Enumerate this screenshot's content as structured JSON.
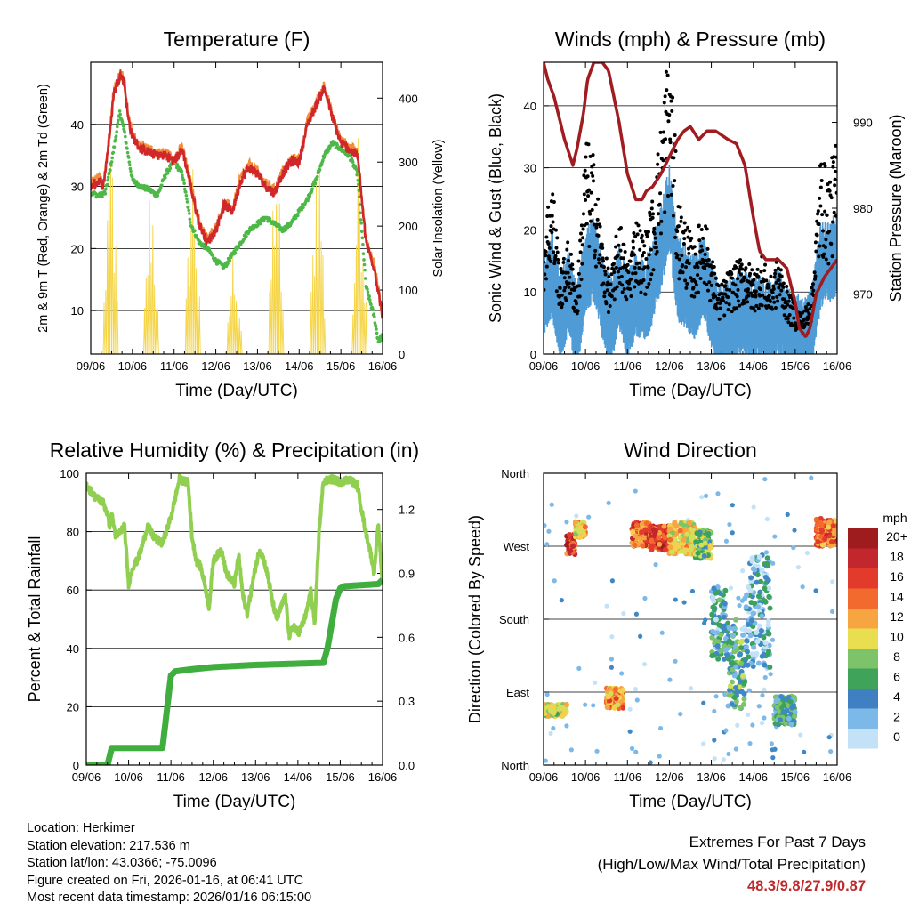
{
  "chart_data": [
    {
      "type": "line",
      "title": "Temperature (F)",
      "xlabel": "Time (Day/UTC)",
      "ylabel": "2m & 9m T (Red, Orange) & 2m Td (Green)",
      "ylabel_right": "Solar Insolation (Yellow)",
      "x_ticks": [
        "09/06",
        "10/06",
        "11/06",
        "12/06",
        "13/06",
        "14/06",
        "15/06",
        "16/06"
      ],
      "xlim": [
        0,
        7
      ],
      "ylim": [
        3,
        50
      ],
      "y_ticks": [
        10,
        20,
        30,
        40
      ],
      "ylim_right": [
        0,
        456
      ],
      "y_ticks_right": [
        0,
        100,
        200,
        300,
        400
      ],
      "colors": {
        "temp2m": "#d0282a",
        "temp9m": "#f28c3a",
        "dewpoint": "#4db848",
        "solar": "#f5d547"
      },
      "series": [
        {
          "name": "2m T",
          "x": [
            0,
            0.2,
            0.3,
            0.45,
            0.55,
            0.7,
            0.8,
            0.9,
            1.0,
            1.2,
            1.4,
            1.6,
            1.8,
            2.0,
            2.2,
            2.4,
            2.6,
            2.8,
            3.0,
            3.2,
            3.4,
            3.6,
            3.8,
            4.0,
            4.2,
            4.4,
            4.6,
            4.8,
            5.0,
            5.2,
            5.4,
            5.6,
            5.8,
            6.0,
            6.2,
            6.4,
            6.6,
            6.8,
            7.0
          ],
          "values": [
            30,
            31,
            30,
            38,
            45,
            48,
            47,
            41,
            38,
            36,
            35.5,
            35,
            35,
            34,
            36,
            30,
            24,
            21,
            23,
            27,
            26,
            31,
            33,
            32,
            30,
            29,
            32,
            34,
            34,
            40,
            43,
            46,
            41,
            37,
            36,
            35,
            21,
            17,
            9
          ]
        },
        {
          "name": "Td",
          "x": [
            0,
            0.2,
            0.35,
            0.5,
            0.6,
            0.7,
            0.8,
            0.9,
            1.0,
            1.2,
            1.4,
            1.6,
            1.8,
            2.0,
            2.2,
            2.4,
            2.6,
            2.8,
            3.0,
            3.2,
            3.4,
            3.6,
            3.8,
            4.0,
            4.2,
            4.4,
            4.6,
            4.8,
            5.0,
            5.2,
            5.4,
            5.6,
            5.8,
            6.0,
            6.2,
            6.4,
            6.6,
            6.8,
            6.9,
            7.0
          ],
          "values": [
            29,
            28.5,
            29,
            34,
            38,
            42,
            39,
            35,
            31,
            30,
            29.5,
            28.5,
            32,
            34,
            32,
            24,
            21,
            20,
            18,
            17,
            19,
            21,
            23,
            24,
            25,
            24,
            23,
            24,
            26,
            28,
            31,
            35,
            37,
            36,
            35,
            32,
            14,
            9,
            5,
            6
          ]
        },
        {
          "name": "Solar",
          "peaks": [
            {
              "x": 0.48,
              "value": 380
            },
            {
              "x": 1.45,
              "value": 300
            },
            {
              "x": 2.45,
              "value": 350
            },
            {
              "x": 3.45,
              "value": 200
            },
            {
              "x": 4.45,
              "value": 370
            },
            {
              "x": 5.45,
              "value": 400
            },
            {
              "x": 6.45,
              "value": 380
            }
          ]
        }
      ]
    },
    {
      "type": "scatter",
      "title": "Winds (mph) & Pressure (mb)",
      "xlabel": "Time (Day/UTC)",
      "ylabel": "Sonic Wind & Gust (Blue, Black)",
      "ylabel_right": "Station Pressure (Maroon)",
      "x_ticks": [
        "09/06",
        "10/06",
        "11/06",
        "12/06",
        "13/06",
        "14/06",
        "15/06",
        "16/06"
      ],
      "xlim": [
        0,
        7
      ],
      "ylim": [
        0,
        47
      ],
      "y_ticks": [
        0,
        10,
        20,
        30,
        40
      ],
      "ylim_right": [
        963,
        997
      ],
      "y_ticks_right": [
        970,
        980,
        990
      ],
      "colors": {
        "wind": "#4f9bd5",
        "gust": "#000000",
        "pressure": "#a01c20"
      },
      "series": [
        {
          "name": "Wind (mean)",
          "x": [
            0,
            0.2,
            0.4,
            0.6,
            0.8,
            1.0,
            1.2,
            1.4,
            1.6,
            1.8,
            2.0,
            2.2,
            2.4,
            2.6,
            2.8,
            3.0,
            3.2,
            3.4,
            3.6,
            3.8,
            4.0,
            4.2,
            4.4,
            4.6,
            4.8,
            5.0,
            5.2,
            5.4,
            5.6,
            5.8,
            6.0,
            6.2,
            6.4,
            6.6,
            6.8,
            7.0
          ],
          "values": [
            10,
            13,
            6,
            10,
            4,
            14,
            15,
            9,
            5,
            11,
            6,
            10,
            8,
            12,
            17,
            24,
            12,
            11,
            9,
            13,
            8,
            4,
            5,
            6,
            7,
            5,
            6,
            5,
            7,
            4,
            3,
            2,
            4,
            14,
            15,
            16
          ]
        },
        {
          "name": "Gust (mean)",
          "x": [
            0,
            0.2,
            0.4,
            0.6,
            0.8,
            1.0,
            1.2,
            1.4,
            1.6,
            1.8,
            2.0,
            2.2,
            2.4,
            2.6,
            2.8,
            3.0,
            3.2,
            3.4,
            3.6,
            3.8,
            4.0,
            4.2,
            4.4,
            4.6,
            4.8,
            5.0,
            5.2,
            5.4,
            5.6,
            5.8,
            6.0,
            6.2,
            6.4,
            6.6,
            6.8,
            7.0
          ],
          "values": [
            15,
            22,
            10,
            14,
            8,
            26,
            24,
            14,
            9,
            17,
            11,
            17,
            14,
            19,
            28,
            40,
            19,
            16,
            13,
            18,
            12,
            8,
            10,
            11,
            12,
            10,
            12,
            9,
            12,
            8,
            6,
            5,
            8,
            24,
            22,
            26
          ]
        },
        {
          "name": "Pressure",
          "x": [
            0,
            0.1,
            0.25,
            0.5,
            0.7,
            0.8,
            0.95,
            1.05,
            1.2,
            1.4,
            1.55,
            1.8,
            2.0,
            2.2,
            2.35,
            2.45,
            2.6,
            2.8,
            3.0,
            3.2,
            3.35,
            3.5,
            3.7,
            3.9,
            4.1,
            4.4,
            4.6,
            4.8,
            5.0,
            5.15,
            5.3,
            5.6,
            5.8,
            6.0,
            6.1,
            6.25,
            6.35,
            6.5,
            6.7,
            7.0
          ],
          "values": [
            997,
            995,
            993,
            988,
            985,
            987,
            991,
            995,
            997,
            997,
            996,
            990,
            984,
            981,
            981,
            982,
            982.5,
            984,
            986,
            988,
            989,
            989.5,
            988,
            989,
            989,
            988,
            987.5,
            985,
            979,
            975,
            974,
            974,
            973,
            969,
            966,
            965,
            966,
            970,
            972,
            974
          ]
        }
      ]
    },
    {
      "type": "line",
      "title": "Relative Humidity (%) & Precipitation (in)",
      "xlabel": "Time (Day/UTC)",
      "ylabel": "Percent & Total Rainfall",
      "x_ticks": [
        "09/06",
        "10/06",
        "11/06",
        "12/06",
        "13/06",
        "14/06",
        "15/06",
        "16/06"
      ],
      "xlim": [
        0,
        7
      ],
      "ylim": [
        0,
        100
      ],
      "y_ticks": [
        0,
        20,
        40,
        60,
        80,
        100
      ],
      "ylim_right": [
        0,
        1.37
      ],
      "y_ticks_right": [
        "0.0",
        "0.3",
        "0.6",
        "0.9",
        "1.2"
      ],
      "colors": {
        "rh": "#90cf4f",
        "precip": "#3fae3f"
      },
      "series": [
        {
          "name": "RH",
          "x": [
            0,
            0.2,
            0.4,
            0.5,
            0.55,
            0.6,
            0.7,
            0.8,
            0.9,
            1.0,
            1.1,
            1.2,
            1.3,
            1.45,
            1.6,
            1.8,
            2.0,
            2.2,
            2.35,
            2.4,
            2.5,
            2.6,
            2.7,
            2.8,
            2.9,
            3.0,
            3.1,
            3.2,
            3.3,
            3.5,
            3.6,
            3.7,
            3.8,
            3.9,
            4.0,
            4.1,
            4.2,
            4.3,
            4.4,
            4.5,
            4.6,
            4.7,
            4.8,
            4.9,
            5.0,
            5.1,
            5.2,
            5.3,
            5.4,
            5.5,
            5.6,
            5.8,
            6.0,
            6.2,
            6.4,
            6.5,
            6.6,
            6.7,
            6.8,
            6.9,
            7.0
          ],
          "values": [
            96,
            92,
            90,
            86,
            82,
            86,
            78,
            80,
            82,
            62,
            68,
            70,
            74,
            82,
            78,
            76,
            85,
            98,
            97,
            98,
            78,
            70,
            68,
            62,
            54,
            70,
            72,
            74,
            66,
            62,
            72,
            58,
            52,
            60,
            68,
            74,
            70,
            64,
            56,
            50,
            54,
            58,
            44,
            48,
            45,
            48,
            52,
            60,
            48,
            80,
            97,
            98,
            97,
            98,
            96,
            88,
            80,
            74,
            66,
            82,
            62
          ]
        },
        {
          "name": "Precip",
          "x": [
            0,
            0.5,
            0.6,
            1.8,
            2.0,
            2.1,
            2.5,
            3.0,
            4.0,
            5.6,
            5.7,
            5.9,
            6.0,
            6.1,
            6.9,
            7.0
          ],
          "values": [
            0,
            0,
            0.08,
            0.08,
            0.42,
            0.44,
            0.45,
            0.46,
            0.47,
            0.48,
            0.55,
            0.78,
            0.83,
            0.84,
            0.85,
            0.87
          ]
        }
      ]
    },
    {
      "type": "scatter",
      "title": "Wind Direction",
      "xlabel": "Time (Day/UTC)",
      "ylabel": "Direction (Colored By Speed)",
      "x_ticks": [
        "09/06",
        "10/06",
        "11/06",
        "12/06",
        "13/06",
        "14/06",
        "15/06",
        "16/06"
      ],
      "xlim": [
        0,
        7
      ],
      "ylim": [
        0,
        360
      ],
      "y_ticks": [
        "North",
        "East",
        "South",
        "West",
        "North"
      ],
      "legend": {
        "title": "mph",
        "labels": [
          "20+",
          "18",
          "16",
          "14",
          "12",
          "10",
          "8",
          "6",
          "4",
          "2",
          "0"
        ],
        "colors": [
          "#9e1b1e",
          "#c1272d",
          "#e23b2c",
          "#f26a2d",
          "#f7a541",
          "#f6d04d",
          "#cfe05a",
          "#7cc36a",
          "#3aa25a",
          "#3f88c5",
          "#7db9e8",
          "#c3e2f7"
        ]
      },
      "clusters": [
        {
          "x": [
            0,
            0.55
          ],
          "dir": [
            60,
            75
          ],
          "speed": 10
        },
        {
          "x": [
            0.55,
            0.75
          ],
          "dir": [
            260,
            285
          ],
          "speed": 18
        },
        {
          "x": [
            0.75,
            1.0
          ],
          "dir": [
            280,
            300
          ],
          "speed": 12
        },
        {
          "x": [
            1.5,
            1.9
          ],
          "dir": [
            70,
            95
          ],
          "speed": 14
        },
        {
          "x": [
            2.1,
            2.55
          ],
          "dir": [
            270,
            300
          ],
          "speed": 16
        },
        {
          "x": [
            2.55,
            3.0
          ],
          "dir": [
            265,
            295
          ],
          "speed": 18
        },
        {
          "x": [
            3.0,
            3.6
          ],
          "dir": [
            260,
            300
          ],
          "speed": 12
        },
        {
          "x": [
            3.6,
            4.0
          ],
          "dir": [
            255,
            290
          ],
          "speed": 8
        },
        {
          "x": [
            4.0,
            4.4
          ],
          "dir": [
            130,
            220
          ],
          "speed": 4
        },
        {
          "x": [
            4.4,
            4.8
          ],
          "dir": [
            70,
            180
          ],
          "speed": 6
        },
        {
          "x": [
            4.8,
            5.4
          ],
          "dir": [
            120,
            260
          ],
          "speed": 3
        },
        {
          "x": [
            5.5,
            6.0
          ],
          "dir": [
            50,
            85
          ],
          "speed": 5
        },
        {
          "x": [
            6.5,
            7.0
          ],
          "dir": [
            270,
            305
          ],
          "speed": 16
        }
      ]
    }
  ],
  "info": {
    "location": "Location: Herkimer",
    "elevation": "Station elevation: 217.536 m",
    "latlon": "Station lat/lon: 43.0366; -75.0096",
    "created": "Figure created on Fri, 2026-01-16, at 06:41 UTC",
    "latest": "Most recent data timestamp: 2026/01/16 06:15:00"
  },
  "extremes": {
    "line1": "Extremes For Past 7 Days",
    "line2": "(High/Low/Max Wind/Total Precipitation)",
    "values": "48.3/9.8/27.9/0.87"
  }
}
